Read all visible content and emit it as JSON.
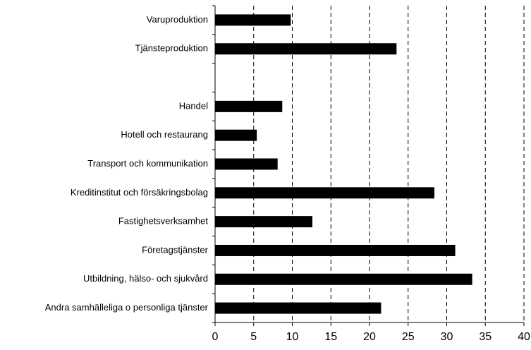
{
  "chart_data": {
    "type": "bar",
    "orientation": "horizontal",
    "categories": [
      "Varuproduktion",
      "Tjänsteproduktion",
      null,
      "Handel",
      "Hotell och restaurang",
      "Transport och kommunikation",
      "Kreditinstitut och försäkringsbolag",
      "Fastighetsverksamhet",
      "Företagstjänster",
      "Utbildning, hälso- och sjukvård",
      "Andra samhälleliga o personliga tjänster"
    ],
    "values": [
      9.8,
      23.5,
      null,
      8.7,
      5.4,
      8.1,
      28.4,
      12.6,
      31.1,
      33.3,
      21.5
    ],
    "color": "#000000",
    "xlim": [
      0,
      40
    ],
    "xticks": [
      0,
      5,
      10,
      15,
      20,
      25,
      30,
      35,
      40
    ],
    "grid": true
  }
}
